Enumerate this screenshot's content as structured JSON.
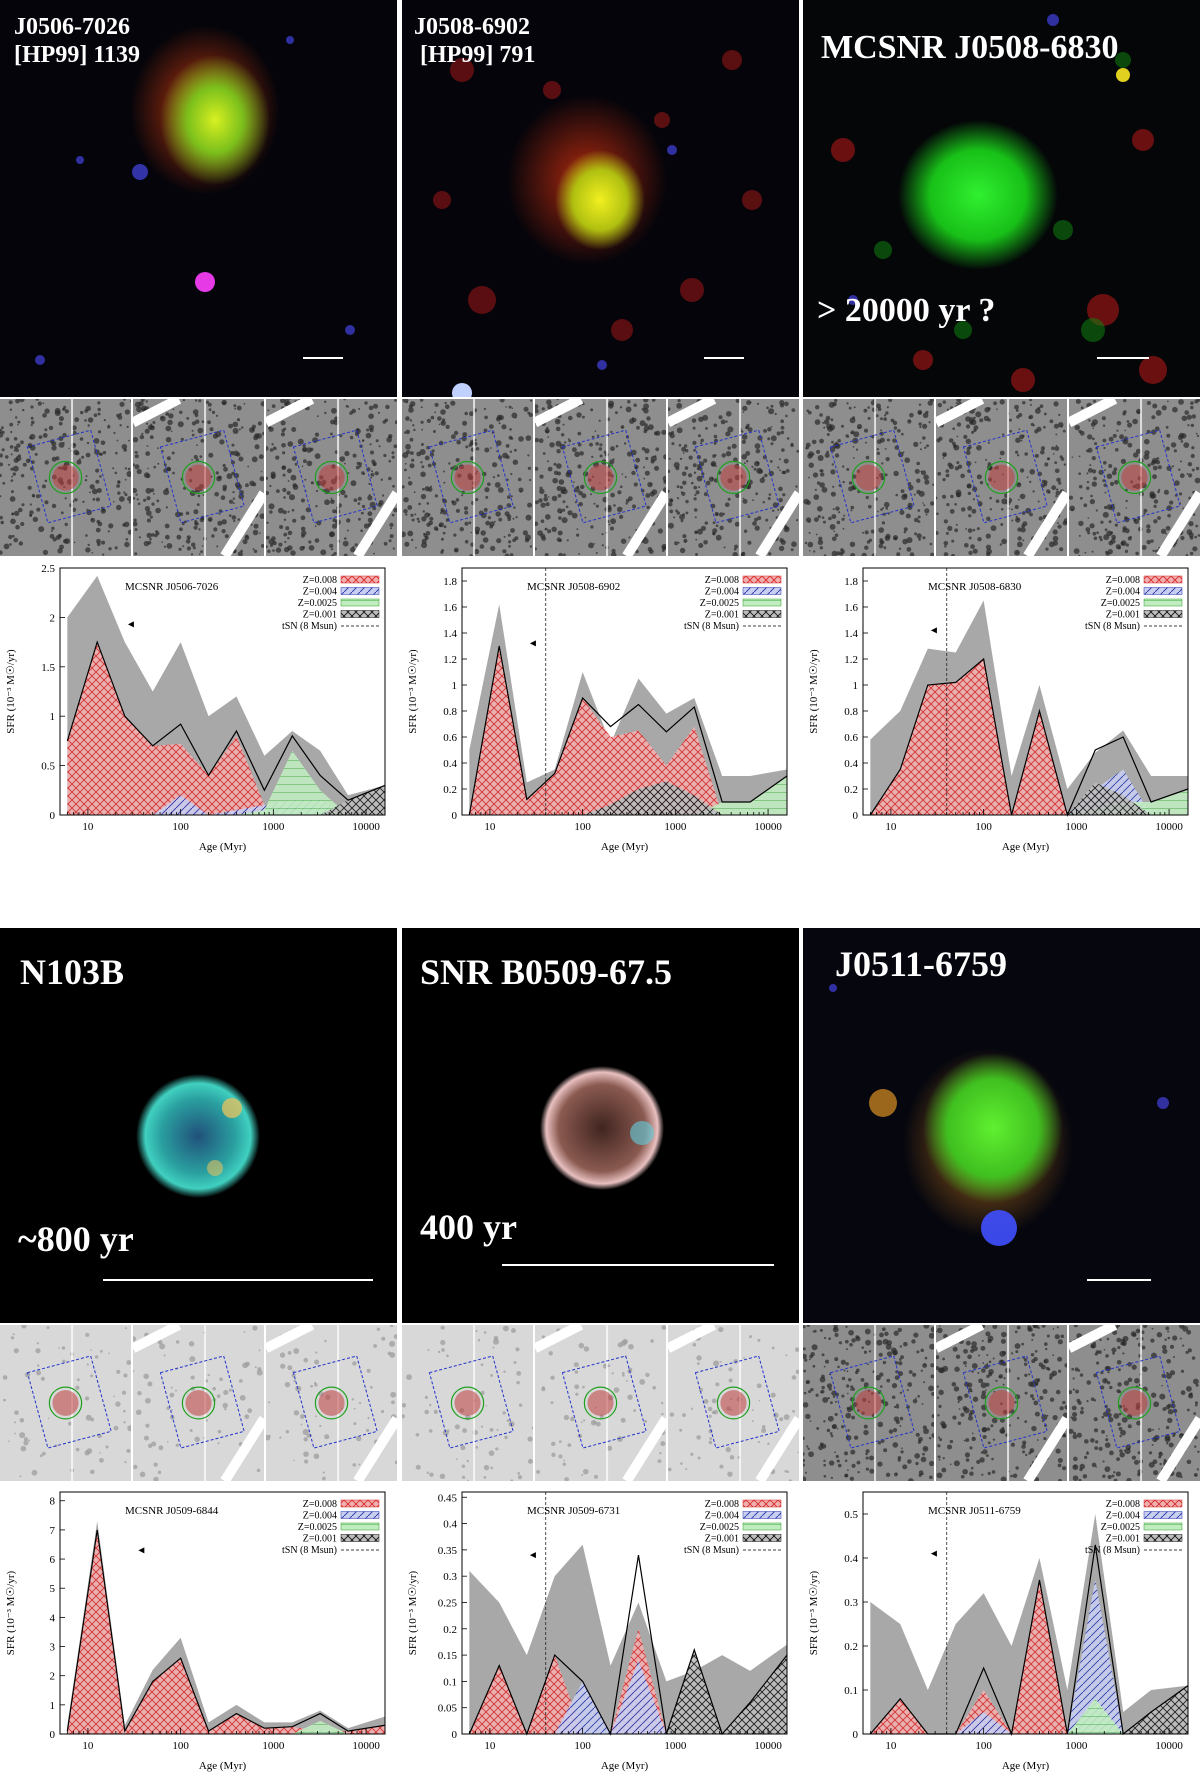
{
  "panels": [
    {
      "image": {
        "title": "J0506-7026\n[HP99] 1139",
        "age_label": "",
        "title_size": 24
      },
      "thumbs": {
        "style": "dark"
      },
      "chart_data": {
        "type": "area",
        "title": "MCSNR J0506-7026",
        "xlabel": "Age (Myr)",
        "ylabel": "SFR (10⁻³ M☉/yr)",
        "xscale": "log",
        "xlim": [
          5,
          16000
        ],
        "ylim": [
          0,
          2.5
        ],
        "yticks": [
          0,
          0.5,
          1,
          1.5,
          2,
          2.5
        ],
        "xticks": [
          10,
          100,
          1000,
          10000
        ],
        "t_sn": null,
        "arrow": [
          27,
          1.93
        ],
        "x": [
          6,
          12.6,
          25,
          50,
          100,
          200,
          400,
          800,
          1600,
          3200,
          6400,
          16000
        ],
        "upper": [
          2.0,
          2.42,
          1.75,
          1.25,
          1.75,
          1.0,
          1.2,
          0.6,
          0.85,
          0.65,
          0.2,
          0.3
        ],
        "series": [
          {
            "name": "Z=0.008",
            "color": "#d62728",
            "values": [
              0.75,
              1.75,
              1.0,
              0.7,
              0.72,
              0.4,
              0.8,
              0.1,
              0.0,
              0.0,
              0.0,
              0.0
            ]
          },
          {
            "name": "Z=0.004",
            "color": "#2233aa",
            "values": [
              0.0,
              0.0,
              0.0,
              0.0,
              0.2,
              0.0,
              0.05,
              0.1,
              0.15,
              0.15,
              0.0,
              0.0
            ]
          },
          {
            "name": "Z=0.0025",
            "color": "#2ca02c",
            "values": [
              0.0,
              0.0,
              0.0,
              0.0,
              0.0,
              0.0,
              0.0,
              0.05,
              0.65,
              0.25,
              0.0,
              0.0
            ]
          },
          {
            "name": "Z=0.001",
            "color": "#111111",
            "values": [
              0.0,
              0.0,
              0.0,
              0.0,
              0.0,
              0.0,
              0.0,
              0.0,
              0.0,
              0.0,
              0.15,
              0.3
            ]
          }
        ],
        "legend": {
          "labels": [
            "Z=0.008",
            "Z=0.004",
            "Z=0.0025",
            "Z=0.001",
            "tSN (8 Msun)"
          ],
          "position": "top-right"
        }
      }
    },
    {
      "image": {
        "title": "J0508-6902\n [HP99] 791",
        "age_label": "",
        "title_size": 24
      },
      "thumbs": {
        "style": "dark"
      },
      "chart_data": {
        "type": "area",
        "title": "MCSNR J0508-6902",
        "xlabel": "Age (Myr)",
        "ylabel": "SFR (10⁻³ M☉/yr)",
        "xscale": "log",
        "xlim": [
          5,
          16000
        ],
        "ylim": [
          0,
          1.9
        ],
        "yticks": [
          0,
          0.2,
          0.4,
          0.6,
          0.8,
          1,
          1.2,
          1.4,
          1.6,
          1.8
        ],
        "xticks": [
          10,
          100,
          1000,
          10000
        ],
        "t_sn": 40,
        "arrow": [
          27,
          1.32
        ],
        "x": [
          6,
          12.6,
          25,
          50,
          100,
          200,
          400,
          800,
          1600,
          3200,
          6400,
          16000
        ],
        "upper": [
          0.5,
          1.62,
          0.25,
          0.35,
          1.1,
          0.55,
          1.05,
          0.78,
          0.9,
          0.3,
          0.3,
          0.35
        ],
        "series": [
          {
            "name": "Z=0.008",
            "color": "#d62728",
            "values": [
              0.0,
              1.3,
              0.12,
              0.32,
              0.9,
              0.6,
              0.65,
              0.38,
              0.68,
              0.0,
              0.0,
              0.0
            ]
          },
          {
            "name": "Z=0.004",
            "color": "#2233aa",
            "values": [
              0.0,
              0.0,
              0.0,
              0.0,
              0.0,
              0.0,
              0.0,
              0.0,
              0.0,
              0.0,
              0.0,
              0.0
            ]
          },
          {
            "name": "Z=0.0025",
            "color": "#2ca02c",
            "values": [
              0.0,
              0.0,
              0.0,
              0.0,
              0.0,
              0.0,
              0.0,
              0.0,
              0.0,
              0.1,
              0.1,
              0.3
            ]
          },
          {
            "name": "Z=0.001",
            "color": "#111111",
            "values": [
              0.0,
              0.0,
              0.0,
              0.0,
              0.0,
              0.08,
              0.2,
              0.26,
              0.15,
              0.0,
              0.0,
              0.0
            ]
          }
        ],
        "legend": {
          "labels": [
            "Z=0.008",
            "Z=0.004",
            "Z=0.0025",
            "Z=0.001",
            "tSN (8 Msun)"
          ],
          "position": "top-right"
        }
      }
    },
    {
      "image": {
        "title": "MCSNR J0508-6830",
        "age_label": "> 20000 yr ?",
        "title_size": 34
      },
      "thumbs": {
        "style": "dark"
      },
      "chart_data": {
        "type": "area",
        "title": "MCSNR J0508-6830",
        "xlabel": "Age (Myr)",
        "ylabel": "SFR (10⁻³ M☉/yr)",
        "xscale": "log",
        "xlim": [
          5,
          16000
        ],
        "ylim": [
          0,
          1.9
        ],
        "yticks": [
          0,
          0.2,
          0.4,
          0.6,
          0.8,
          1,
          1.2,
          1.4,
          1.6,
          1.8
        ],
        "xticks": [
          10,
          100,
          1000,
          10000
        ],
        "t_sn": 40,
        "arrow": [
          27,
          1.42
        ],
        "x": [
          6,
          12.6,
          25,
          50,
          100,
          200,
          400,
          800,
          1600,
          3200,
          6400,
          16000
        ],
        "upper": [
          0.58,
          0.8,
          1.28,
          1.25,
          1.65,
          0.3,
          1.0,
          0.2,
          0.48,
          0.65,
          0.3,
          0.3
        ],
        "series": [
          {
            "name": "Z=0.008",
            "color": "#d62728",
            "values": [
              0.0,
              0.35,
              1.0,
              1.02,
              1.2,
              0.0,
              0.8,
              0.0,
              0.0,
              0.0,
              0.0,
              0.0
            ]
          },
          {
            "name": "Z=0.004",
            "color": "#2233aa",
            "values": [
              0.0,
              0.0,
              0.0,
              0.0,
              0.0,
              0.0,
              0.0,
              0.0,
              0.2,
              0.35,
              0.0,
              0.0
            ]
          },
          {
            "name": "Z=0.0025",
            "color": "#2ca02c",
            "values": [
              0.0,
              0.0,
              0.0,
              0.0,
              0.0,
              0.0,
              0.0,
              0.0,
              0.05,
              0.1,
              0.1,
              0.2
            ]
          },
          {
            "name": "Z=0.001",
            "color": "#111111",
            "values": [
              0.0,
              0.0,
              0.0,
              0.0,
              0.0,
              0.0,
              0.0,
              0.0,
              0.25,
              0.15,
              0.0,
              0.0
            ]
          }
        ],
        "legend": {
          "labels": [
            "Z=0.008",
            "Z=0.004",
            "Z=0.0025",
            "Z=0.001",
            "tSN (8 Msun)"
          ],
          "position": "top-right"
        }
      }
    },
    {
      "image": {
        "title": "N103B",
        "age_label": "~800 yr",
        "title_size": 36
      },
      "thumbs": {
        "style": "light"
      },
      "chart_data": {
        "type": "area",
        "title": "MCSNR J0509-6844",
        "xlabel": "Age (Myr)",
        "ylabel": "SFR (10⁻³ M☉/yr)",
        "xscale": "log",
        "xlim": [
          5,
          16000
        ],
        "ylim": [
          0,
          8.3
        ],
        "yticks": [
          0,
          1,
          2,
          3,
          4,
          5,
          6,
          7,
          8
        ],
        "xticks": [
          10,
          100,
          1000,
          10000
        ],
        "t_sn": null,
        "arrow": [
          35,
          6.3
        ],
        "x": [
          6,
          12.6,
          25,
          50,
          100,
          200,
          400,
          800,
          1600,
          3200,
          6400,
          16000
        ],
        "upper": [
          0.3,
          7.3,
          0.3,
          2.2,
          3.3,
          0.4,
          1.0,
          0.4,
          0.4,
          0.8,
          0.2,
          0.6
        ],
        "series": [
          {
            "name": "Z=0.008",
            "color": "#d62728",
            "values": [
              0.1,
              7.0,
              0.1,
              1.8,
              2.6,
              0.1,
              0.7,
              0.2,
              0.25,
              0.1,
              0.1,
              0.3
            ]
          },
          {
            "name": "Z=0.004",
            "color": "#2233aa",
            "values": [
              0.0,
              0.0,
              0.0,
              0.0,
              0.0,
              0.0,
              0.0,
              0.0,
              0.0,
              0.15,
              0.0,
              0.0
            ]
          },
          {
            "name": "Z=0.0025",
            "color": "#2ca02c",
            "values": [
              0.0,
              0.0,
              0.0,
              0.0,
              0.0,
              0.0,
              0.0,
              0.0,
              0.0,
              0.45,
              0.0,
              0.0
            ]
          },
          {
            "name": "Z=0.001",
            "color": "#111111",
            "values": [
              0.0,
              0.0,
              0.0,
              0.0,
              0.0,
              0.0,
              0.0,
              0.0,
              0.0,
              0.0,
              0.0,
              0.0
            ]
          }
        ],
        "legend": {
          "labels": [
            "Z=0.008",
            "Z=0.004",
            "Z=0.0025",
            "Z=0.001",
            "tSN (8 Msun)"
          ],
          "position": "top-right"
        }
      }
    },
    {
      "image": {
        "title": "SNR B0509-67.5",
        "age_label": "400 yr",
        "title_size": 36
      },
      "thumbs": {
        "style": "light"
      },
      "chart_data": {
        "type": "area",
        "title": "MCSNR J0509-6731",
        "xlabel": "Age (Myr)",
        "ylabel": "SFR (10⁻³ M☉/yr)",
        "xscale": "log",
        "xlim": [
          5,
          16000
        ],
        "ylim": [
          0,
          0.46
        ],
        "yticks": [
          0,
          0.05,
          0.1,
          0.15,
          0.2,
          0.25,
          0.3,
          0.35,
          0.4,
          0.45
        ],
        "xticks": [
          10,
          100,
          1000,
          10000
        ],
        "t_sn": 40,
        "arrow": [
          27,
          0.34
        ],
        "x": [
          6,
          12.6,
          25,
          50,
          100,
          200,
          400,
          800,
          1600,
          3200,
          6400,
          16000
        ],
        "upper": [
          0.31,
          0.25,
          0.15,
          0.3,
          0.36,
          0.13,
          0.25,
          0.1,
          0.12,
          0.15,
          0.12,
          0.17
        ],
        "series": [
          {
            "name": "Z=0.008",
            "color": "#d62728",
            "values": [
              0.0,
              0.13,
              0.0,
              0.15,
              0.0,
              0.0,
              0.2,
              0.0,
              0.0,
              0.0,
              0.0,
              0.0
            ]
          },
          {
            "name": "Z=0.004",
            "color": "#2233aa",
            "values": [
              0.0,
              0.0,
              0.0,
              0.0,
              0.1,
              0.0,
              0.14,
              0.0,
              0.0,
              0.0,
              0.0,
              0.0
            ]
          },
          {
            "name": "Z=0.0025",
            "color": "#2ca02c",
            "values": [
              0.0,
              0.0,
              0.0,
              0.0,
              0.0,
              0.0,
              0.0,
              0.0,
              0.0,
              0.0,
              0.0,
              0.0
            ]
          },
          {
            "name": "Z=0.001",
            "color": "#111111",
            "values": [
              0.0,
              0.0,
              0.0,
              0.0,
              0.0,
              0.0,
              0.0,
              0.0,
              0.16,
              0.0,
              0.06,
              0.15
            ]
          }
        ],
        "legend": {
          "labels": [
            "Z=0.008",
            "Z=0.004",
            "Z=0.0025",
            "Z=0.001",
            "tSN (8 Msun)"
          ],
          "position": "top-right"
        }
      }
    },
    {
      "image": {
        "title": "J0511-6759",
        "age_label": "",
        "title_size": 36
      },
      "thumbs": {
        "style": "dark"
      },
      "chart_data": {
        "type": "area",
        "title": "MCSNR J0511-6759",
        "xlabel": "Age (Myr)",
        "ylabel": "SFR (10⁻³ M☉/yr)",
        "xscale": "log",
        "xlim": [
          5,
          16000
        ],
        "ylim": [
          0,
          0.55
        ],
        "yticks": [
          0,
          0.1,
          0.2,
          0.3,
          0.4,
          0.5
        ],
        "xticks": [
          10,
          100,
          1000,
          10000
        ],
        "t_sn": 40,
        "arrow": [
          27,
          0.41
        ],
        "x": [
          6,
          12.6,
          25,
          50,
          100,
          200,
          400,
          800,
          1600,
          3200,
          6400,
          16000
        ],
        "upper": [
          0.3,
          0.25,
          0.1,
          0.25,
          0.32,
          0.2,
          0.4,
          0.1,
          0.5,
          0.05,
          0.1,
          0.11
        ],
        "series": [
          {
            "name": "Z=0.008",
            "color": "#d62728",
            "values": [
              0.0,
              0.08,
              0.0,
              0.0,
              0.1,
              0.0,
              0.35,
              0.0,
              0.0,
              0.0,
              0.0,
              0.0
            ]
          },
          {
            "name": "Z=0.004",
            "color": "#2233aa",
            "values": [
              0.0,
              0.0,
              0.0,
              0.0,
              0.05,
              0.0,
              0.0,
              0.0,
              0.35,
              0.0,
              0.0,
              0.0
            ]
          },
          {
            "name": "Z=0.0025",
            "color": "#2ca02c",
            "values": [
              0.0,
              0.0,
              0.0,
              0.0,
              0.0,
              0.0,
              0.0,
              0.0,
              0.08,
              0.0,
              0.0,
              0.0
            ]
          },
          {
            "name": "Z=0.001",
            "color": "#111111",
            "values": [
              0.0,
              0.0,
              0.0,
              0.0,
              0.0,
              0.0,
              0.0,
              0.0,
              0.0,
              0.0,
              0.05,
              0.11
            ]
          }
        ],
        "legend": {
          "labels": [
            "Z=0.008",
            "Z=0.004",
            "Z=0.0025",
            "Z=0.001",
            "tSN (8 Msun)"
          ],
          "position": "top-right"
        }
      }
    }
  ]
}
